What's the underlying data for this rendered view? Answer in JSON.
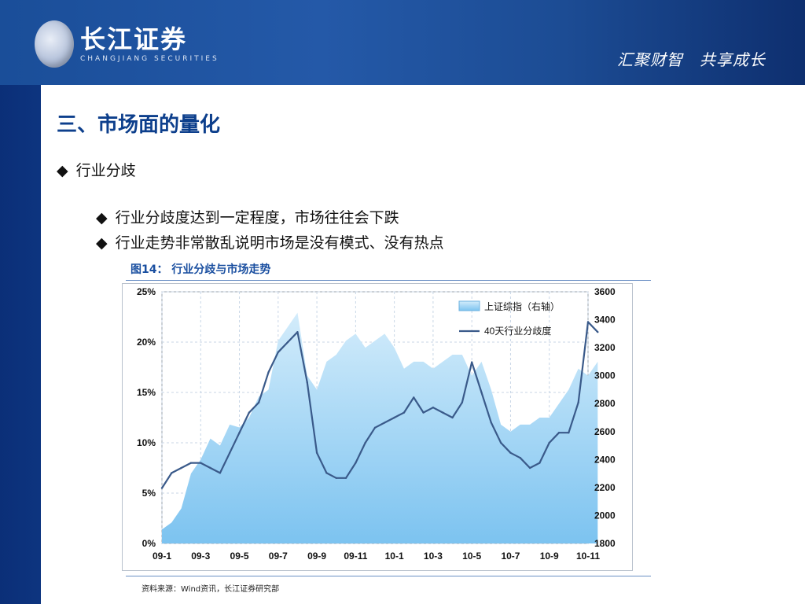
{
  "header": {
    "logo_cn": "长江证券",
    "logo_en": "CHANGJIANG SECURITIES",
    "slogan": "汇聚财智　共享成长"
  },
  "slide": {
    "title": "三、市场面的量化",
    "bullet_1": "行业分歧",
    "bullet_2": "行业分歧度达到一定程度，市场往往会下跌",
    "bullet_3": "行业走势非常散乱说明市场是没有模式、没有热点",
    "bullet_symbol": "◆",
    "figure_caption": "图14： 行业分歧与市场走势",
    "source": "资料来源：Wind资讯，长江证券研究部"
  },
  "chart_data": {
    "type": "line",
    "x_categories": [
      "09-1",
      "09-3",
      "09-5",
      "09-7",
      "09-9",
      "09-11",
      "10-1",
      "10-3",
      "10-5",
      "10-7",
      "10-9",
      "10-11"
    ],
    "left_axis": {
      "ticks": [
        "0%",
        "5%",
        "10%",
        "15%",
        "20%",
        "25%"
      ],
      "min": 0,
      "max": 25
    },
    "right_axis": {
      "ticks": [
        "1800",
        "2000",
        "2200",
        "2400",
        "2600",
        "2800",
        "3000",
        "3200",
        "3400",
        "3600"
      ],
      "min": 1800,
      "max": 3600
    },
    "grid": true,
    "legend_position": "top-right",
    "colors": {
      "area": "#7cc3f0",
      "area_light": "#d3ecfb",
      "line": "#3a5a8a"
    },
    "series": [
      {
        "name": "上证综指（右轴）",
        "kind": "area",
        "axis": "right",
        "x": [
          0,
          0.5,
          1,
          1.5,
          2,
          2.5,
          3,
          3.5,
          4,
          4.5,
          5,
          5.5,
          6,
          6.5,
          7,
          7.5,
          8,
          8.5,
          9,
          9.5,
          10,
          10.5,
          11,
          11.5,
          12,
          12.5,
          13,
          13.5,
          14,
          14.5,
          15,
          15.5,
          16,
          16.5,
          17,
          17.5,
          18,
          18.5,
          19,
          19.5,
          20,
          20.5,
          21,
          21.5,
          22,
          22.5
        ],
        "values": [
          1900,
          1950,
          2050,
          2300,
          2400,
          2550,
          2500,
          2650,
          2630,
          2700,
          2850,
          2900,
          3250,
          3350,
          3450,
          3000,
          2900,
          3100,
          3150,
          3250,
          3300,
          3200,
          3250,
          3300,
          3200,
          3050,
          3100,
          3100,
          3050,
          3100,
          3150,
          3150,
          3000,
          3100,
          2900,
          2650,
          2600,
          2650,
          2650,
          2700,
          2700,
          2800,
          2900,
          3050,
          3000,
          3100
        ]
      },
      {
        "name": "40天行业分歧度",
        "kind": "line",
        "axis": "left",
        "x": [
          0,
          0.5,
          1,
          1.5,
          2,
          2.5,
          3,
          3.5,
          4,
          4.5,
          5,
          5.5,
          6,
          6.5,
          7,
          7.5,
          8,
          8.5,
          9,
          9.5,
          10,
          10.5,
          11,
          11.5,
          12,
          12.5,
          13,
          13.5,
          14,
          14.5,
          15,
          15.5,
          16,
          16.5,
          17,
          17.5,
          18,
          18.5,
          19,
          19.5,
          20,
          20.5,
          21,
          21.5,
          22,
          22.5
        ],
        "values": [
          5.5,
          7.0,
          7.5,
          8.0,
          8.0,
          7.5,
          7.0,
          9.0,
          11.0,
          13.0,
          14.0,
          17.0,
          19.0,
          20.0,
          21.0,
          16.0,
          9.0,
          7.0,
          6.5,
          6.5,
          8.0,
          10.0,
          11.5,
          12.0,
          12.5,
          13.0,
          14.5,
          13.0,
          13.5,
          13.0,
          12.5,
          14.0,
          18.0,
          15.0,
          12.0,
          10.0,
          9.0,
          8.5,
          7.5,
          8.0,
          10.0,
          11.0,
          11.0,
          14.0,
          22.0,
          21.0
        ]
      }
    ]
  }
}
